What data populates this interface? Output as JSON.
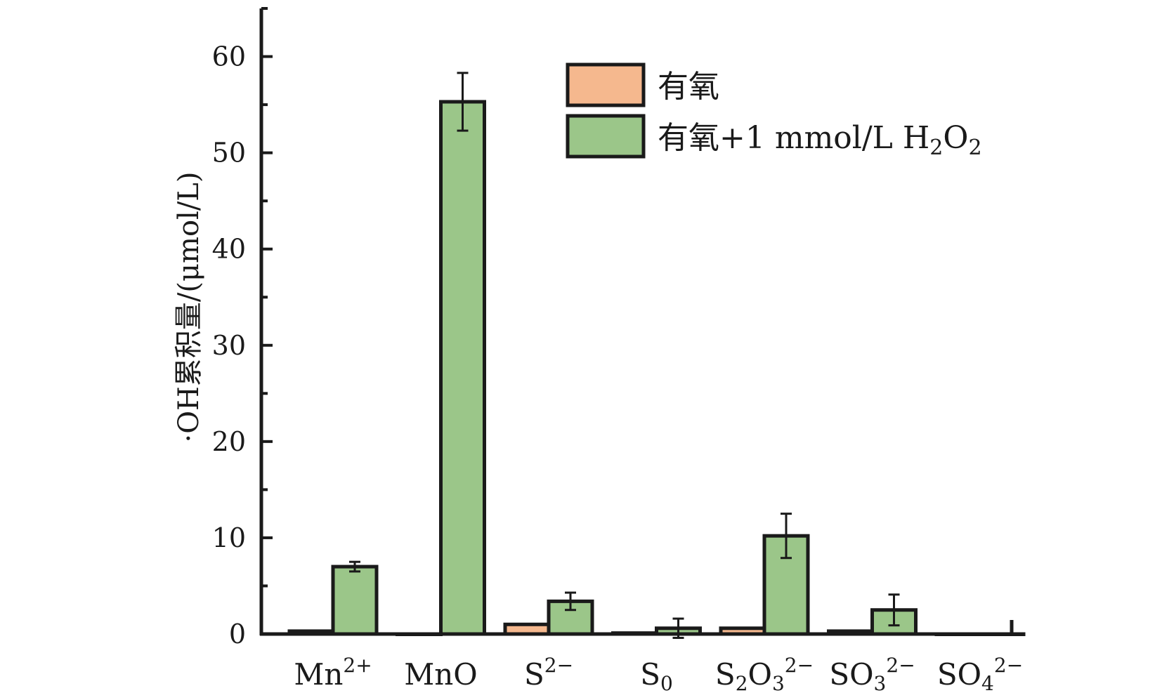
{
  "chart_data": {
    "type": "bar",
    "title": "",
    "xlabel": "",
    "ylabel": "·OH累积量/(μmol/L)",
    "ylim": [
      0,
      65
    ],
    "yticks": [
      "0",
      "10",
      "20",
      "30",
      "40",
      "50",
      "60"
    ],
    "grid": false,
    "legend_position": "top-right",
    "categories": [
      {
        "base": "Mn",
        "sub": "",
        "sup": "2+"
      },
      {
        "base": "MnO",
        "sub": "",
        "sup": ""
      },
      {
        "base": "S",
        "sub": "",
        "sup": "2−"
      },
      {
        "base": "S",
        "sub": "0",
        "sup": ""
      },
      {
        "base": "S",
        "sub": "2",
        "mid": "O",
        "sub2": "3",
        "sup": "2−"
      },
      {
        "base": "SO",
        "sub": "3",
        "sup": "2−"
      },
      {
        "base": "SO",
        "sub": "4",
        "sup": "2−"
      }
    ],
    "series": [
      {
        "legend": {
          "text": "有氧",
          "formula": ""
        },
        "color": "#f5b88e",
        "values": [
          0.3,
          0,
          1.0,
          0.1,
          0.6,
          0.3,
          0
        ],
        "errors": [
          0,
          0,
          0,
          0,
          0,
          0,
          0
        ]
      },
      {
        "legend": {
          "text": "有氧+1 mmol/L H",
          "sub": "2",
          "mid": "O",
          "sub2": "2"
        },
        "color": "#9bc689",
        "values": [
          7.0,
          55.3,
          3.4,
          0.6,
          10.2,
          2.5,
          0
        ],
        "errors": [
          0.5,
          3.0,
          0.9,
          1.0,
          2.3,
          1.6,
          0
        ]
      }
    ]
  }
}
